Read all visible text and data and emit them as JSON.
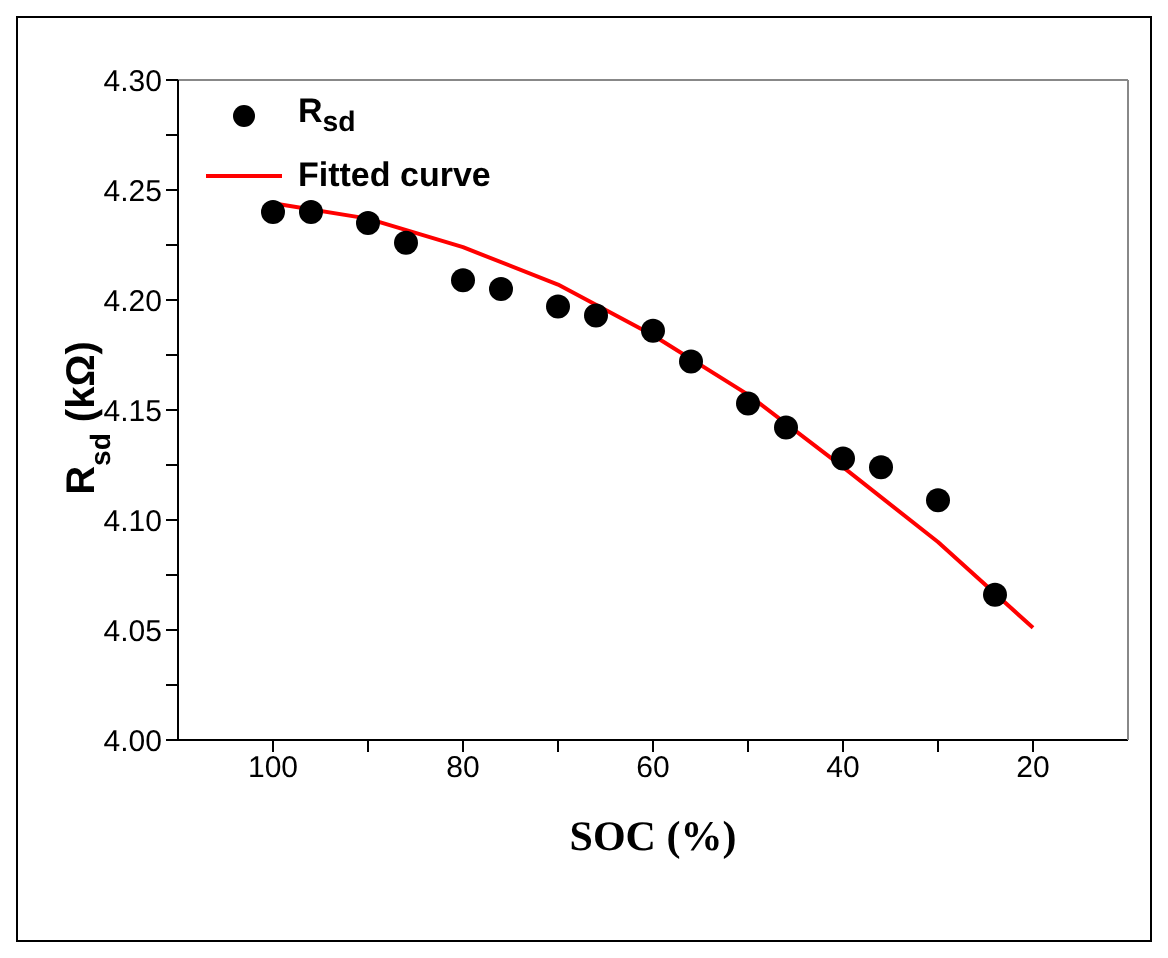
{
  "chart_data": {
    "type": "scatter",
    "xlabel": "SOC (%)",
    "ylabel": "R$_{sd}$ (kΩ)",
    "xlim": [
      110,
      10
    ],
    "xticks": [
      100,
      {
        "value": 90,
        "label": null
      },
      80,
      {
        "value": 70,
        "label": null
      },
      60,
      {
        "value": 50,
        "label": null
      },
      40,
      {
        "value": 30,
        "label": null
      },
      20
    ],
    "ylim": [
      4.0,
      4.3
    ],
    "yticks": [
      {
        "value": 4.0,
        "label": "4.00"
      },
      {
        "value": 4.025,
        "label": null
      },
      {
        "value": 4.05,
        "label": "4.05"
      },
      {
        "value": 4.075,
        "label": null
      },
      {
        "value": 4.1,
        "label": "4.10"
      },
      {
        "value": 4.125,
        "label": null
      },
      {
        "value": 4.15,
        "label": "4.15"
      },
      {
        "value": 4.175,
        "label": null
      },
      {
        "value": 4.2,
        "label": "4.20"
      },
      {
        "value": 4.225,
        "label": null
      },
      {
        "value": 4.25,
        "label": "4.25"
      },
      {
        "value": 4.275,
        "label": null
      },
      {
        "value": 4.3,
        "label": "4.30"
      }
    ],
    "legend": "top left",
    "grid": false,
    "series": [
      {
        "name": "R$_{sd}$",
        "color": "#000000",
        "marker": "circle",
        "x": [
          100,
          96,
          90,
          86,
          80,
          76,
          70,
          66,
          60,
          56,
          50,
          46,
          40,
          36,
          30,
          24
        ],
        "values": [
          4.24,
          4.24,
          4.235,
          4.226,
          4.209,
          4.205,
          4.197,
          4.193,
          4.186,
          4.172,
          4.153,
          4.142,
          4.128,
          4.124,
          4.109,
          4.066
        ]
      },
      {
        "type": "line",
        "name": "Fitted curve",
        "color": "#ff0000",
        "marker": "none",
        "line_style": "solid",
        "x": [
          100,
          90,
          80,
          70,
          60,
          50,
          40,
          30,
          20
        ],
        "values": [
          4.244,
          4.237,
          4.224,
          4.207,
          4.184,
          4.157,
          4.124,
          4.09,
          4.051
        ]
      }
    ]
  }
}
